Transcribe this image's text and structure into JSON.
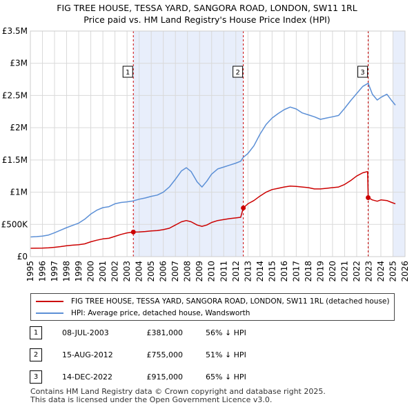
{
  "chart_data": {
    "type": "line",
    "title": "FIG TREE HOUSE, TESSA YARD, SANGORA ROAD, LONDON, SW11 1RL",
    "subtitle": "Price paid vs. HM Land Registry's House Price Index (HPI)",
    "xlabel": "",
    "ylabel": "",
    "xlim": [
      1995,
      2026
    ],
    "ylim": [
      0,
      3500000
    ],
    "y_ticks": [
      {
        "value": 0,
        "label": "£0"
      },
      {
        "value": 500000,
        "label": "£500K"
      },
      {
        "value": 1000000,
        "label": "£1M"
      },
      {
        "value": 1500000,
        "label": "£1.5M"
      },
      {
        "value": 2000000,
        "label": "£2M"
      },
      {
        "value": 2500000,
        "label": "£2.5M"
      },
      {
        "value": 3000000,
        "label": "£3M"
      },
      {
        "value": 3500000,
        "label": "£3.5M"
      }
    ],
    "x_ticks": [
      "1995",
      "1996",
      "1997",
      "1998",
      "1999",
      "2000",
      "2001",
      "2002",
      "2003",
      "2004",
      "2005",
      "2006",
      "2007",
      "2008",
      "2009",
      "2010",
      "2011",
      "2012",
      "2013",
      "2014",
      "2015",
      "2016",
      "2017",
      "2018",
      "2019",
      "2020",
      "2021",
      "2022",
      "2023",
      "2024",
      "2025",
      "2026"
    ],
    "grid": true,
    "series": [
      {
        "name": "FIG TREE HOUSE, TESSA YARD, SANGORA ROAD, LONDON, SW11 1RL (detached house)",
        "color": "#cc0000",
        "points": [
          [
            1995.0,
            130000
          ],
          [
            1995.5,
            132000
          ],
          [
            1996.0,
            133000
          ],
          [
            1996.5,
            137000
          ],
          [
            1997.0,
            145000
          ],
          [
            1997.5,
            155000
          ],
          [
            1998.0,
            168000
          ],
          [
            1998.5,
            178000
          ],
          [
            1999.0,
            185000
          ],
          [
            1999.5,
            198000
          ],
          [
            2000.0,
            230000
          ],
          [
            2000.5,
            255000
          ],
          [
            2001.0,
            275000
          ],
          [
            2001.5,
            285000
          ],
          [
            2002.0,
            315000
          ],
          [
            2002.5,
            345000
          ],
          [
            2003.0,
            368000
          ],
          [
            2003.52,
            381000
          ],
          [
            2004.0,
            383000
          ],
          [
            2004.5,
            390000
          ],
          [
            2005.0,
            398000
          ],
          [
            2005.5,
            405000
          ],
          [
            2006.0,
            418000
          ],
          [
            2006.5,
            440000
          ],
          [
            2007.0,
            490000
          ],
          [
            2007.5,
            540000
          ],
          [
            2007.9,
            560000
          ],
          [
            2008.3,
            540000
          ],
          [
            2008.8,
            490000
          ],
          [
            2009.2,
            470000
          ],
          [
            2009.6,
            490000
          ],
          [
            2010.0,
            530000
          ],
          [
            2010.5,
            560000
          ],
          [
            2011.0,
            575000
          ],
          [
            2011.5,
            590000
          ],
          [
            2012.0,
            600000
          ],
          [
            2012.4,
            610000
          ],
          [
            2012.62,
            755000
          ],
          [
            2013.0,
            820000
          ],
          [
            2013.5,
            870000
          ],
          [
            2014.0,
            940000
          ],
          [
            2014.5,
            1000000
          ],
          [
            2015.0,
            1040000
          ],
          [
            2015.5,
            1060000
          ],
          [
            2016.0,
            1080000
          ],
          [
            2016.5,
            1095000
          ],
          [
            2017.0,
            1090000
          ],
          [
            2017.5,
            1080000
          ],
          [
            2018.0,
            1070000
          ],
          [
            2018.5,
            1050000
          ],
          [
            2019.0,
            1050000
          ],
          [
            2019.5,
            1060000
          ],
          [
            2020.0,
            1070000
          ],
          [
            2020.5,
            1080000
          ],
          [
            2021.0,
            1120000
          ],
          [
            2021.5,
            1180000
          ],
          [
            2022.0,
            1250000
          ],
          [
            2022.5,
            1300000
          ],
          [
            2022.9,
            1320000
          ],
          [
            2022.95,
            915000
          ],
          [
            2023.3,
            880000
          ],
          [
            2023.7,
            860000
          ],
          [
            2024.0,
            880000
          ],
          [
            2024.5,
            870000
          ],
          [
            2024.9,
            840000
          ],
          [
            2025.2,
            820000
          ]
        ]
      },
      {
        "name": "HPI: Average price, detached house, Wandsworth",
        "color": "#5b8fd6",
        "points": [
          [
            1995.0,
            305000
          ],
          [
            1995.5,
            310000
          ],
          [
            1996.0,
            318000
          ],
          [
            1996.5,
            335000
          ],
          [
            1997.0,
            370000
          ],
          [
            1997.5,
            410000
          ],
          [
            1998.0,
            450000
          ],
          [
            1998.5,
            485000
          ],
          [
            1999.0,
            520000
          ],
          [
            1999.5,
            580000
          ],
          [
            2000.0,
            660000
          ],
          [
            2000.5,
            720000
          ],
          [
            2001.0,
            760000
          ],
          [
            2001.5,
            775000
          ],
          [
            2002.0,
            820000
          ],
          [
            2002.5,
            840000
          ],
          [
            2003.0,
            850000
          ],
          [
            2003.52,
            865000
          ],
          [
            2004.0,
            890000
          ],
          [
            2004.5,
            910000
          ],
          [
            2005.0,
            935000
          ],
          [
            2005.5,
            955000
          ],
          [
            2006.0,
            1000000
          ],
          [
            2006.5,
            1080000
          ],
          [
            2007.0,
            1200000
          ],
          [
            2007.5,
            1330000
          ],
          [
            2007.9,
            1380000
          ],
          [
            2008.3,
            1320000
          ],
          [
            2008.8,
            1160000
          ],
          [
            2009.2,
            1080000
          ],
          [
            2009.6,
            1170000
          ],
          [
            2010.0,
            1280000
          ],
          [
            2010.5,
            1360000
          ],
          [
            2011.0,
            1390000
          ],
          [
            2011.5,
            1420000
          ],
          [
            2012.0,
            1450000
          ],
          [
            2012.4,
            1480000
          ],
          [
            2012.62,
            1540000
          ],
          [
            2013.0,
            1600000
          ],
          [
            2013.5,
            1720000
          ],
          [
            2014.0,
            1900000
          ],
          [
            2014.5,
            2050000
          ],
          [
            2015.0,
            2150000
          ],
          [
            2015.5,
            2220000
          ],
          [
            2016.0,
            2280000
          ],
          [
            2016.5,
            2320000
          ],
          [
            2017.0,
            2290000
          ],
          [
            2017.5,
            2230000
          ],
          [
            2018.0,
            2200000
          ],
          [
            2018.5,
            2170000
          ],
          [
            2019.0,
            2130000
          ],
          [
            2019.5,
            2150000
          ],
          [
            2020.0,
            2170000
          ],
          [
            2020.5,
            2190000
          ],
          [
            2021.0,
            2300000
          ],
          [
            2021.5,
            2420000
          ],
          [
            2022.0,
            2530000
          ],
          [
            2022.5,
            2640000
          ],
          [
            2022.95,
            2690000
          ],
          [
            2023.3,
            2520000
          ],
          [
            2023.7,
            2430000
          ],
          [
            2024.0,
            2470000
          ],
          [
            2024.5,
            2520000
          ],
          [
            2024.9,
            2420000
          ],
          [
            2025.2,
            2350000
          ]
        ]
      }
    ],
    "sales": [
      {
        "num": "1",
        "year": 2003.52,
        "value": 381000
      },
      {
        "num": "2",
        "year": 2012.62,
        "value": 755000
      },
      {
        "num": "3",
        "year": 2022.95,
        "value": 915000
      }
    ],
    "shaded_ranges": [
      [
        2003.52,
        2012.62
      ],
      [
        2025.0,
        2026.0
      ]
    ],
    "colors": {
      "shade": "#e8eefb",
      "grid": "#d9d9d9",
      "sale_line": "#cc0000"
    }
  },
  "legend": {
    "items": [
      {
        "label": "FIG TREE HOUSE, TESSA YARD, SANGORA ROAD, LONDON, SW11 1RL (detached house)",
        "color": "#cc0000"
      },
      {
        "label": "HPI: Average price, detached house, Wandsworth",
        "color": "#5b8fd6"
      }
    ]
  },
  "transactions": [
    {
      "num": "1",
      "date": "08-JUL-2003",
      "price": "£381,000",
      "hpi": "56% ↓ HPI"
    },
    {
      "num": "2",
      "date": "15-AUG-2012",
      "price": "£755,000",
      "hpi": "51% ↓ HPI"
    },
    {
      "num": "3",
      "date": "14-DEC-2022",
      "price": "£915,000",
      "hpi": "65% ↓ HPI"
    }
  ],
  "footer": {
    "line1": "Contains HM Land Registry data © Crown copyright and database right 2025.",
    "line2": "This data is licensed under the Open Government Licence v3.0."
  }
}
